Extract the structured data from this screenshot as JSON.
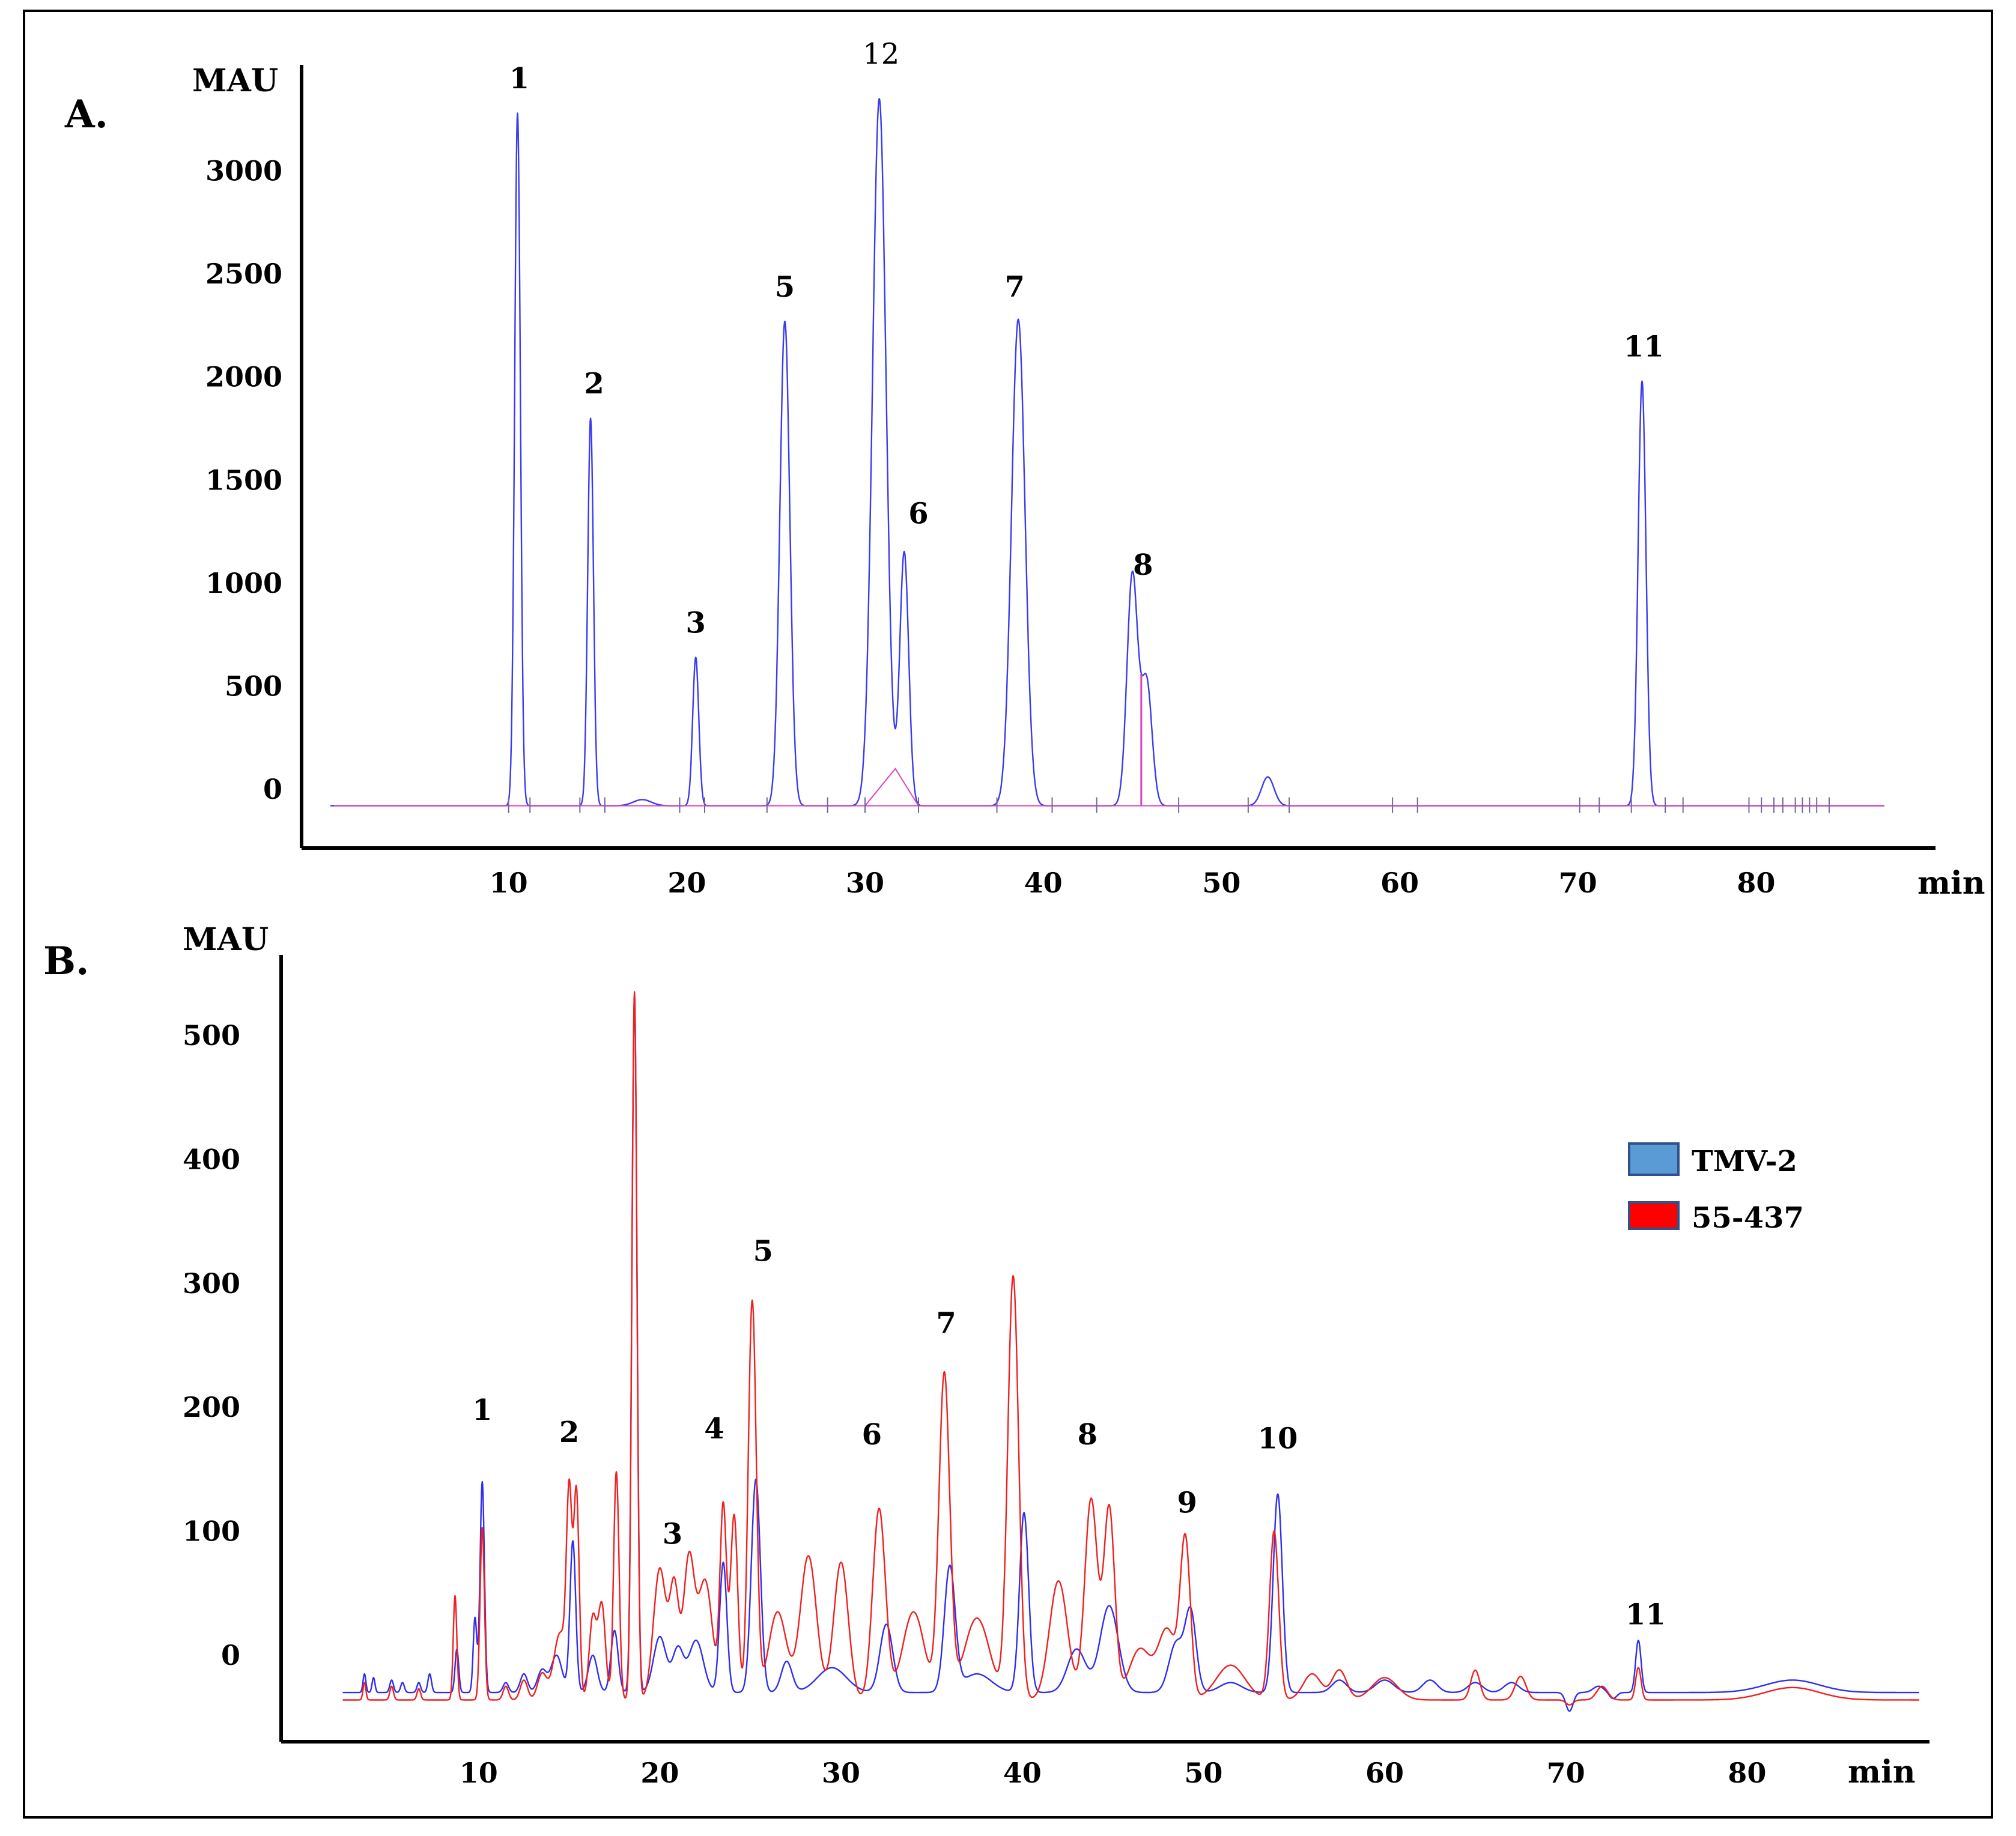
{
  "chart_data": [
    {
      "panel": "A.",
      "type": "line",
      "ylabel": "MAU",
      "xlabel": "min",
      "xlim": [
        0,
        90
      ],
      "ylim": [
        -250,
        3450
      ],
      "y_ticks": [
        {
          "value": 0,
          "label": "0"
        },
        {
          "value": 500,
          "label": "500"
        },
        {
          "value": 1000,
          "label": "1000"
        },
        {
          "value": 1500,
          "label": "1500"
        },
        {
          "value": 2000,
          "label": "2000"
        },
        {
          "value": 2500,
          "label": "2500"
        },
        {
          "value": 3000,
          "label": "3000"
        }
      ],
      "x_ticks": [
        {
          "value": 10,
          "label": "10"
        },
        {
          "value": 20,
          "label": "20"
        },
        {
          "value": 30,
          "label": "30"
        },
        {
          "value": 40,
          "label": "40"
        },
        {
          "value": 50,
          "label": "50"
        },
        {
          "value": 60,
          "label": "60"
        },
        {
          "value": 70,
          "label": "70"
        },
        {
          "value": 80,
          "label": "80"
        }
      ],
      "series": [
        {
          "color": "#3a3af0",
          "baseline": -80,
          "peaks": [
            {
              "label": "1",
              "x": 10.5,
              "y": 3280,
              "w": 0.16
            },
            {
              "label": "2",
              "x": 14.6,
              "y": 1800,
              "w": 0.16
            },
            {
              "label": "3",
              "x": 20.5,
              "y": 640,
              "w": 0.17
            },
            {
              "label": "5",
              "x": 25.5,
              "y": 2270,
              "w": 0.28
            },
            {
              "label": "12",
              "x": 30.8,
              "y": 3350,
              "w": 0.38
            },
            {
              "label": "6",
              "x": 32.2,
              "y": 1150,
              "w": 0.25
            },
            {
              "label": "7",
              "x": 38.6,
              "y": 2280,
              "w": 0.38
            },
            {
              "label": "8",
              "x": 45.0,
              "y": 1040,
              "w": 0.3
            },
            {
              "label": "",
              "x": 45.8,
              "y": 520,
              "w": 0.3
            },
            {
              "label": "",
              "x": 52.6,
              "y": 60,
              "w": 0.35
            },
            {
              "label": "11",
              "x": 73.6,
              "y": 1980,
              "w": 0.22
            },
            {
              "label": "",
              "x": 17.5,
              "y": -50,
              "w": 0.5
            }
          ]
        }
      ],
      "peak_labels": [
        {
          "text": "1",
          "x": 10.6,
          "y": 3400,
          "bold": true
        },
        {
          "text": "2",
          "x": 14.8,
          "y": 1920,
          "bold": true
        },
        {
          "text": "3",
          "x": 20.5,
          "y": 760,
          "bold": true
        },
        {
          "text": "5",
          "x": 25.5,
          "y": 2390,
          "bold": true
        },
        {
          "text": "12",
          "x": 30.9,
          "y": 3520,
          "bold": false
        },
        {
          "text": "6",
          "x": 33.0,
          "y": 1290,
          "bold": true
        },
        {
          "text": "7",
          "x": 38.4,
          "y": 2390,
          "bold": true
        },
        {
          "text": "8",
          "x": 45.6,
          "y": 1040,
          "bold": true
        },
        {
          "text": "11",
          "x": 73.7,
          "y": 2100,
          "bold": true
        }
      ]
    },
    {
      "panel": "B.",
      "type": "line",
      "ylabel": "MAU",
      "xlabel": "min",
      "xlim": [
        -0.5,
        90
      ],
      "ylim": [
        -60,
        560
      ],
      "y_ticks": [
        {
          "value": 0,
          "label": "0"
        },
        {
          "value": 100,
          "label": "100"
        },
        {
          "value": 200,
          "label": "200"
        },
        {
          "value": 300,
          "label": "300"
        },
        {
          "value": 400,
          "label": "400"
        },
        {
          "value": 500,
          "label": "500"
        }
      ],
      "x_ticks": [
        {
          "value": 10,
          "label": "10"
        },
        {
          "value": 20,
          "label": "20"
        },
        {
          "value": 30,
          "label": "30"
        },
        {
          "value": 40,
          "label": "40"
        },
        {
          "value": 50,
          "label": "50"
        },
        {
          "value": 60,
          "label": "60"
        },
        {
          "value": 70,
          "label": "70"
        },
        {
          "value": 80,
          "label": "80"
        }
      ],
      "series": [
        {
          "name": "TMV-2",
          "color": "#2e2ef0",
          "baseline": -30,
          "peaks": [
            {
              "x": 3.7,
              "y": -15,
              "w": 0.08
            },
            {
              "x": 4.2,
              "y": -18,
              "w": 0.08
            },
            {
              "x": 5.2,
              "y": -20,
              "w": 0.1
            },
            {
              "x": 5.8,
              "y": -22,
              "w": 0.1
            },
            {
              "x": 6.7,
              "y": -22,
              "w": 0.1
            },
            {
              "x": 7.3,
              "y": -15,
              "w": 0.1
            },
            {
              "x": 8.8,
              "y": 5,
              "w": 0.1
            },
            {
              "x": 9.8,
              "y": 30,
              "w": 0.1
            },
            {
              "x": 10.2,
              "y": 140,
              "w": 0.12
            },
            {
              "x": 11.5,
              "y": -22,
              "w": 0.15
            },
            {
              "x": 12.5,
              "y": -15,
              "w": 0.2
            },
            {
              "x": 13.5,
              "y": -12,
              "w": 0.25
            },
            {
              "x": 14.3,
              "y": 0,
              "w": 0.3
            },
            {
              "x": 15.2,
              "y": 92,
              "w": 0.16
            },
            {
              "x": 16.3,
              "y": 0,
              "w": 0.25
            },
            {
              "x": 17.5,
              "y": 20,
              "w": 0.2
            },
            {
              "x": 18.6,
              "y": 530,
              "w": 0.14
            },
            {
              "x": 20.0,
              "y": 15,
              "w": 0.35
            },
            {
              "x": 21.0,
              "y": 5,
              "w": 0.3
            },
            {
              "x": 22.0,
              "y": 12,
              "w": 0.4
            },
            {
              "x": 23.5,
              "y": 75,
              "w": 0.2
            },
            {
              "x": 25.3,
              "y": 142,
              "w": 0.25
            },
            {
              "x": 27.0,
              "y": -5,
              "w": 0.3
            },
            {
              "x": 29.5,
              "y": -10,
              "w": 0.8
            },
            {
              "x": 32.5,
              "y": 25,
              "w": 0.35
            },
            {
              "x": 36.0,
              "y": 70,
              "w": 0.3
            },
            {
              "x": 37.5,
              "y": -15,
              "w": 0.8
            },
            {
              "x": 40.1,
              "y": 115,
              "w": 0.25
            },
            {
              "x": 43.0,
              "y": 5,
              "w": 0.5
            },
            {
              "x": 44.8,
              "y": 40,
              "w": 0.5
            },
            {
              "x": 48.5,
              "y": 10,
              "w": 0.4
            },
            {
              "x": 49.3,
              "y": 33,
              "w": 0.3
            },
            {
              "x": 51.5,
              "y": -22,
              "w": 0.6
            },
            {
              "x": 54.1,
              "y": 130,
              "w": 0.25
            },
            {
              "x": 57.5,
              "y": -20,
              "w": 0.4
            },
            {
              "x": 60.0,
              "y": -20,
              "w": 0.5
            },
            {
              "x": 62.5,
              "y": -20,
              "w": 0.4
            },
            {
              "x": 65.0,
              "y": -22,
              "w": 0.4
            },
            {
              "x": 67.0,
              "y": -22,
              "w": 0.4
            },
            {
              "x": 70.2,
              "y": -45,
              "w": 0.2
            },
            {
              "x": 71.8,
              "y": -25,
              "w": 0.3
            },
            {
              "x": 72.6,
              "y": -35,
              "w": 0.2
            },
            {
              "x": 74.0,
              "y": 12,
              "w": 0.15
            },
            {
              "x": 82.5,
              "y": -20,
              "w": 1.5
            }
          ]
        },
        {
          "name": "55-437",
          "color": "#f02020",
          "baseline": -36,
          "peaks": [
            {
              "x": 3.7,
              "y": -22,
              "w": 0.08
            },
            {
              "x": 5.2,
              "y": -25,
              "w": 0.1
            },
            {
              "x": 6.7,
              "y": -27,
              "w": 0.1
            },
            {
              "x": 8.7,
              "y": 48,
              "w": 0.1
            },
            {
              "x": 10.2,
              "y": 103,
              "w": 0.12
            },
            {
              "x": 11.5,
              "y": -25,
              "w": 0.15
            },
            {
              "x": 12.5,
              "y": -20,
              "w": 0.2
            },
            {
              "x": 13.5,
              "y": -15,
              "w": 0.25
            },
            {
              "x": 14.5,
              "y": 18,
              "w": 0.35
            },
            {
              "x": 15.0,
              "y": 118,
              "w": 0.15
            },
            {
              "x": 15.4,
              "y": 130,
              "w": 0.15
            },
            {
              "x": 16.3,
              "y": 30,
              "w": 0.2
            },
            {
              "x": 16.8,
              "y": 40,
              "w": 0.2
            },
            {
              "x": 17.6,
              "y": 148,
              "w": 0.15
            },
            {
              "x": 18.6,
              "y": 535,
              "w": 0.14
            },
            {
              "x": 20.0,
              "y": 70,
              "w": 0.35
            },
            {
              "x": 20.8,
              "y": 52,
              "w": 0.25
            },
            {
              "x": 21.6,
              "y": 75,
              "w": 0.3
            },
            {
              "x": 22.5,
              "y": 60,
              "w": 0.4
            },
            {
              "x": 23.5,
              "y": 118,
              "w": 0.18
            },
            {
              "x": 24.1,
              "y": 113,
              "w": 0.2
            },
            {
              "x": 25.1,
              "y": 285,
              "w": 0.22
            },
            {
              "x": 26.5,
              "y": 35,
              "w": 0.5
            },
            {
              "x": 28.2,
              "y": 80,
              "w": 0.45
            },
            {
              "x": 30.0,
              "y": 75,
              "w": 0.4
            },
            {
              "x": 32.1,
              "y": 118,
              "w": 0.35
            },
            {
              "x": 34.0,
              "y": 35,
              "w": 0.6
            },
            {
              "x": 35.7,
              "y": 225,
              "w": 0.3
            },
            {
              "x": 37.5,
              "y": 30,
              "w": 0.7
            },
            {
              "x": 39.5,
              "y": 305,
              "w": 0.3
            },
            {
              "x": 42.0,
              "y": 60,
              "w": 0.5
            },
            {
              "x": 43.8,
              "y": 126,
              "w": 0.35
            },
            {
              "x": 44.8,
              "y": 118,
              "w": 0.3
            },
            {
              "x": 46.5,
              "y": 5,
              "w": 0.6
            },
            {
              "x": 48.0,
              "y": 20,
              "w": 0.5
            },
            {
              "x": 49.0,
              "y": 90,
              "w": 0.28
            },
            {
              "x": 51.5,
              "y": -8,
              "w": 0.8
            },
            {
              "x": 53.9,
              "y": 100,
              "w": 0.25
            },
            {
              "x": 56.0,
              "y": -15,
              "w": 0.5
            },
            {
              "x": 57.5,
              "y": -12,
              "w": 0.4
            },
            {
              "x": 60.0,
              "y": -18,
              "w": 0.7
            },
            {
              "x": 65.0,
              "y": -12,
              "w": 0.25
            },
            {
              "x": 67.5,
              "y": -17,
              "w": 0.3
            },
            {
              "x": 70.2,
              "y": -40,
              "w": 0.2
            },
            {
              "x": 72.0,
              "y": -25,
              "w": 0.3
            },
            {
              "x": 74.0,
              "y": -10,
              "w": 0.15
            },
            {
              "x": 82.5,
              "y": -26,
              "w": 1.5
            }
          ]
        }
      ],
      "peak_labels": [
        {
          "text": "1",
          "x": 10.2,
          "y": 190,
          "bold": true
        },
        {
          "text": "2",
          "x": 15.0,
          "y": 172,
          "bold": true
        },
        {
          "text": "3",
          "x": 20.7,
          "y": 90,
          "bold": true
        },
        {
          "text": "4",
          "x": 23.0,
          "y": 175,
          "bold": true
        },
        {
          "text": "5",
          "x": 25.7,
          "y": 318,
          "bold": true
        },
        {
          "text": "6",
          "x": 31.7,
          "y": 170,
          "bold": true
        },
        {
          "text": "7",
          "x": 35.8,
          "y": 260,
          "bold": true
        },
        {
          "text": "8",
          "x": 43.6,
          "y": 170,
          "bold": true
        },
        {
          "text": "9",
          "x": 49.1,
          "y": 115,
          "bold": true
        },
        {
          "text": "10",
          "x": 54.1,
          "y": 167,
          "bold": true
        },
        {
          "text": "11",
          "x": 74.4,
          "y": 25,
          "bold": true
        }
      ],
      "legend": [
        {
          "label": "TMV-2",
          "swatch_color": "#5b9bd5",
          "text_color": "#1f1fe0"
        },
        {
          "label": "55-437",
          "swatch_color": "#ff0000",
          "text_color": "#ee1111"
        }
      ]
    }
  ]
}
